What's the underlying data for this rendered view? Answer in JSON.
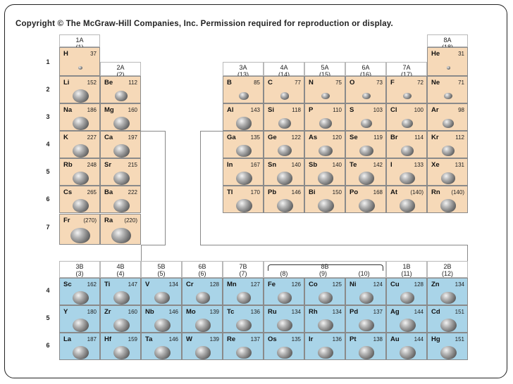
{
  "copyright": "Copyright © The McGraw-Hill Companies, Inc. Permission required for reproduction or display.",
  "period_labels": [
    "1",
    "2",
    "3",
    "4",
    "5",
    "6",
    "7"
  ],
  "transition_period_labels": [
    "4",
    "5",
    "6"
  ],
  "group_headers": {
    "g1": {
      "a": "1A",
      "b": "(1)"
    },
    "g2": {
      "a": "2A",
      "b": "(2)"
    },
    "g13": {
      "a": "3A",
      "b": "(13)"
    },
    "g14": {
      "a": "4A",
      "b": "(14)"
    },
    "g15": {
      "a": "5A",
      "b": "(15)"
    },
    "g16": {
      "a": "6A",
      "b": "(16)"
    },
    "g17": {
      "a": "7A",
      "b": "(17)"
    },
    "g18": {
      "a": "8A",
      "b": "(18)"
    },
    "t3": {
      "a": "3B",
      "b": "(3)"
    },
    "t4": {
      "a": "4B",
      "b": "(4)"
    },
    "t5": {
      "a": "5B",
      "b": "(5)"
    },
    "t6": {
      "a": "6B",
      "b": "(6)"
    },
    "t7": {
      "a": "7B",
      "b": "(7)"
    },
    "t8": {
      "a": "8B",
      "b8": "(8)",
      "b9": "(9)",
      "b10": "(10)"
    },
    "t11": {
      "a": "1B",
      "b": "(11)"
    },
    "t12": {
      "a": "2B",
      "b": "(12)"
    }
  },
  "elements": {
    "H": "37",
    "Li": "152",
    "Na": "186",
    "K": "227",
    "Rb": "248",
    "Cs": "265",
    "Fr": "(270)",
    "Be": "112",
    "Mg": "160",
    "Ca": "197",
    "Sr": "215",
    "Ba": "222",
    "Ra": "(220)",
    "He": "31",
    "B": "85",
    "C": "77",
    "N": "75",
    "O": "73",
    "F": "72",
    "Ne": "71",
    "Al": "143",
    "Si": "118",
    "P": "110",
    "S": "103",
    "Cl": "100",
    "Ar": "98",
    "Ga": "135",
    "Ge": "122",
    "As": "120",
    "Se": "119",
    "Br": "114",
    "Kr": "112",
    "In": "167",
    "Sn": "140",
    "Sb": "140",
    "Te": "142",
    "I": "133",
    "Xe": "131",
    "Tl": "170",
    "Pb": "146",
    "Bi": "150",
    "Po": "168",
    "At": "(140)",
    "Rn": "(140)",
    "Sc": "162",
    "Ti": "147",
    "V": "134",
    "Cr": "128",
    "Mn": "127",
    "Fe": "126",
    "Co": "125",
    "Ni": "124",
    "Cu": "128",
    "Zn": "134",
    "Y": "180",
    "Zr": "160",
    "Nb": "146",
    "Mo": "139",
    "Tc": "136",
    "Ru": "134",
    "Rh": "134",
    "Pd": "137",
    "Ag": "144",
    "Cd": "151",
    "La": "187",
    "Hf": "159",
    "Ta": "146",
    "W": "139",
    "Re": "137",
    "Os": "135",
    "Ir": "136",
    "Pt": "138",
    "Au": "144",
    "Hg": "151"
  }
}
